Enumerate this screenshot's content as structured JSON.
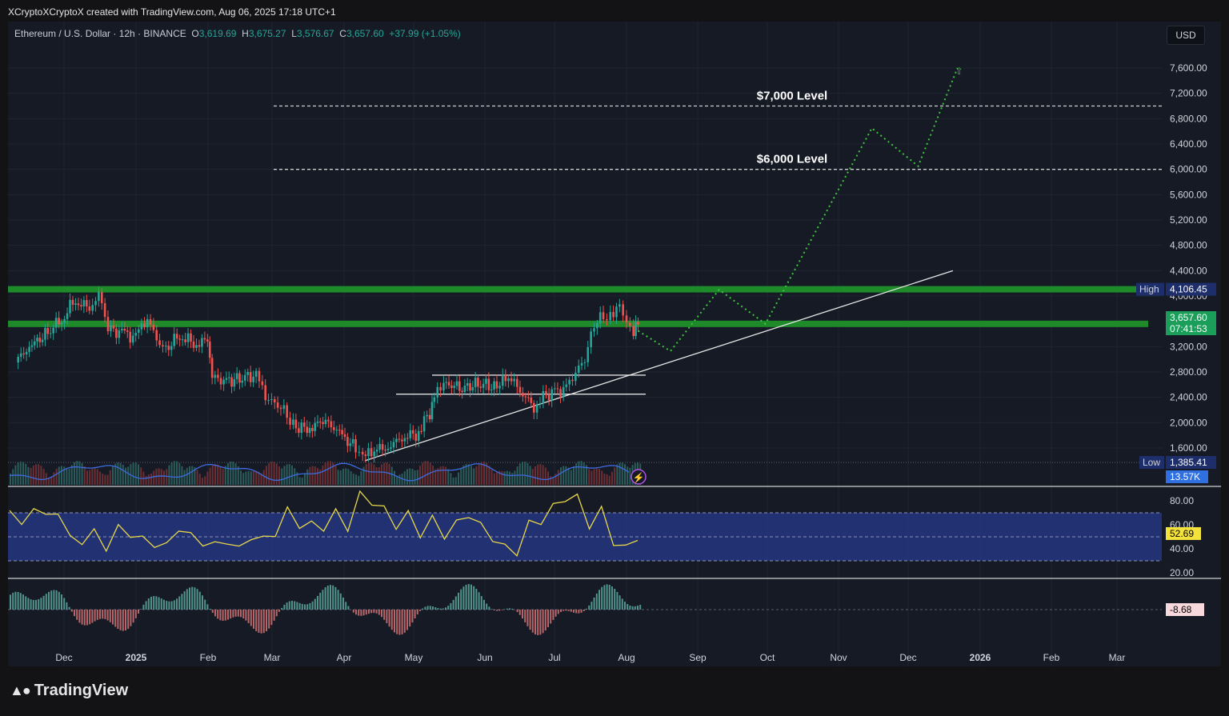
{
  "header": {
    "creator_line": "XCryptoXCryptoX created with TradingView.com, Aug 06, 2025 17:18 UTC+1"
  },
  "legend": {
    "symbol": "Ethereum / U.S. Dollar · 12h · BINANCE",
    "o_label": "O",
    "o_value": "3,619.69",
    "h_label": "H",
    "h_value": "3,675.27",
    "l_label": "L",
    "l_value": "3,576.67",
    "c_label": "C",
    "c_value": "3,657.60",
    "change": "+37.99 (+1.05%)"
  },
  "currency_button": "USD",
  "footer": {
    "logo_text": "TradingView"
  },
  "colors": {
    "background": "#161a25",
    "level_band": "#1e8a2a",
    "projection": "#3ec53e",
    "rsi_line": "#e8d84a",
    "rsi_band": "#253a8c",
    "candle_up": "#26a69a",
    "candle_down": "#ef5350",
    "obv_line": "#3d6be0"
  },
  "chart_data": {
    "type": "candlestick",
    "title": "Ethereum / U.S. Dollar · 12h · BINANCE",
    "price_axis": {
      "ticks": [
        "7,600.00",
        "7,200.00",
        "6,800.00",
        "6,400.00",
        "6,000.00",
        "5,600.00",
        "5,200.00",
        "4,800.00",
        "4,400.00",
        "4,000.00",
        "3,200.00",
        "2,800.00",
        "2,400.00",
        "2,000.00",
        "1,600.00"
      ],
      "ylim": [
        1200,
        7900
      ]
    },
    "time_axis": {
      "ticks": [
        "Dec",
        "2025",
        "Feb",
        "Mar",
        "Apr",
        "May",
        "Jun",
        "Jul",
        "Aug",
        "Sep",
        "Oct",
        "Nov",
        "Dec",
        "2026",
        "Feb",
        "Mar"
      ]
    },
    "price_path": [
      [
        "2024-11-10",
        2950
      ],
      [
        "2024-11-16",
        3200
      ],
      [
        "2024-11-24",
        3420
      ],
      [
        "2024-11-30",
        3650
      ],
      [
        "2024-12-06",
        3950
      ],
      [
        "2024-12-12",
        3800
      ],
      [
        "2024-12-16",
        4050
      ],
      [
        "2024-12-20",
        3500
      ],
      [
        "2024-12-26",
        3400
      ],
      [
        "2025-01-01",
        3350
      ],
      [
        "2025-01-06",
        3650
      ],
      [
        "2025-01-10",
        3300
      ],
      [
        "2025-01-14",
        3150
      ],
      [
        "2025-01-20",
        3400
      ],
      [
        "2025-01-26",
        3250
      ],
      [
        "2025-02-01",
        3300
      ],
      [
        "2025-02-03",
        2750
      ],
      [
        "2025-02-08",
        2650
      ],
      [
        "2025-02-16",
        2700
      ],
      [
        "2025-02-22",
        2750
      ],
      [
        "2025-02-26",
        2400
      ],
      [
        "2025-03-02",
        2300
      ],
      [
        "2025-03-06",
        2200
      ],
      [
        "2025-03-10",
        1950
      ],
      [
        "2025-03-16",
        1900
      ],
      [
        "2025-03-24",
        2050
      ],
      [
        "2025-03-30",
        1820
      ],
      [
        "2025-04-06",
        1600
      ],
      [
        "2025-04-09",
        1420
      ],
      [
        "2025-04-14",
        1580
      ],
      [
        "2025-04-20",
        1600
      ],
      [
        "2025-04-26",
        1780
      ],
      [
        "2025-05-02",
        1820
      ],
      [
        "2025-05-08",
        2150
      ],
      [
        "2025-05-10",
        2500
      ],
      [
        "2025-05-14",
        2620
      ],
      [
        "2025-05-22",
        2550
      ],
      [
        "2025-05-30",
        2620
      ],
      [
        "2025-06-06",
        2550
      ],
      [
        "2025-06-11",
        2750
      ],
      [
        "2025-06-16",
        2500
      ],
      [
        "2025-06-22",
        2250
      ],
      [
        "2025-06-26",
        2430
      ],
      [
        "2025-07-01",
        2480
      ],
      [
        "2025-07-06",
        2550
      ],
      [
        "2025-07-10",
        2800
      ],
      [
        "2025-07-14",
        3000
      ],
      [
        "2025-07-18",
        3550
      ],
      [
        "2025-07-22",
        3680
      ],
      [
        "2025-07-25",
        3650
      ],
      [
        "2025-07-29",
        3850
      ],
      [
        "2025-08-01",
        3600
      ],
      [
        "2025-08-04",
        3450
      ],
      [
        "2025-08-06",
        3657.6
      ]
    ],
    "levels": [
      {
        "label": "$7,000 Level",
        "price": 7000,
        "style": "dashed"
      },
      {
        "label": "$6,000 Level",
        "price": 6000,
        "style": "dashed"
      }
    ],
    "support_resistance_bands": [
      4106.45,
      3560
    ],
    "horizontal_channel": [
      2750,
      2450
    ],
    "trendline": [
      [
        "2025-04-10",
        1400
      ],
      [
        "2025-12-20",
        4400
      ]
    ],
    "projection_path": [
      [
        "2025-08-06",
        3450
      ],
      [
        "2025-08-20",
        3130
      ],
      [
        "2025-09-10",
        4100
      ],
      [
        "2025-09-30",
        3560
      ],
      [
        "2025-11-15",
        6650
      ],
      [
        "2025-12-05",
        6050
      ],
      [
        "2025-12-22",
        7600
      ]
    ],
    "markers": {
      "high_label": "High",
      "high_value": "4,106.45",
      "low_label": "Low",
      "low_value": "1,385.41",
      "last_price": "3,657.60",
      "countdown": "07:41:53",
      "volume_badge": "13.57K"
    },
    "rsi": {
      "ticks": [
        "80.00",
        "60.00",
        "40.00",
        "20.00"
      ],
      "upper": 70,
      "lower": 30,
      "current": "52.69",
      "values": [
        72,
        60,
        74,
        68,
        70,
        50,
        45,
        55,
        40,
        58,
        52,
        48,
        44,
        42,
        58,
        50,
        46,
        42,
        48,
        38,
        52,
        46,
        55,
        70,
        62,
        58,
        60,
        68,
        60,
        85,
        82,
        70,
        62,
        66,
        55,
        62,
        54,
        58,
        72,
        56,
        52,
        38,
        40,
        58,
        66,
        72,
        85,
        80,
        62,
        70,
        48,
        38,
        52
      ]
    },
    "oscillator": {
      "current": "-8.68"
    }
  }
}
